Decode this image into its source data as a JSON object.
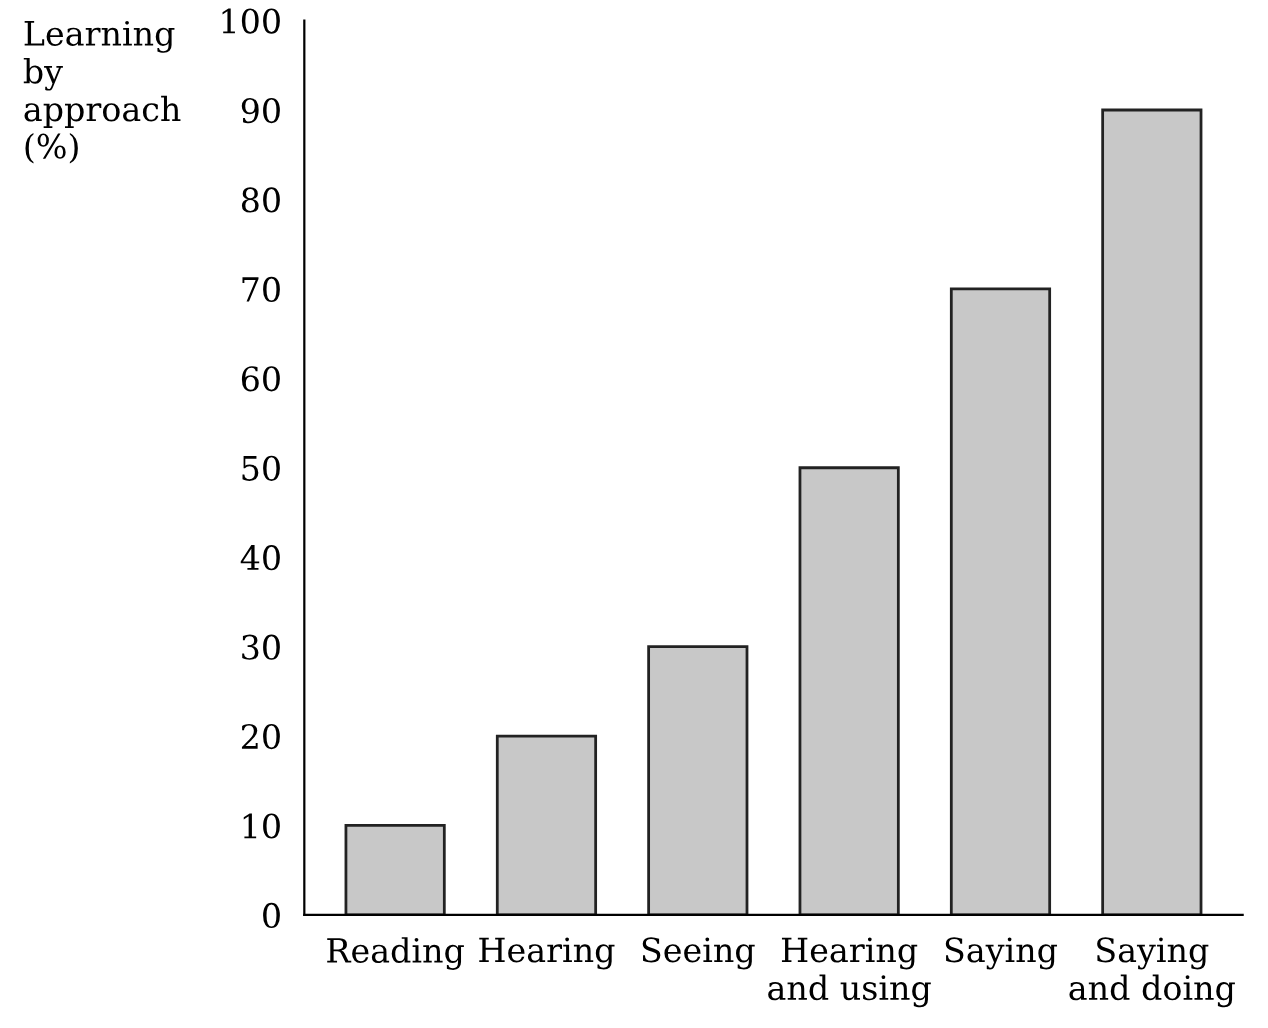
{
  "chart_data": {
    "type": "bar",
    "ylabel": "Learning\nby\napproach\n(%)",
    "categories": [
      "Reading",
      "Hearing",
      "Seeing",
      "Hearing\nand using",
      "Saying",
      "Saying\nand doing"
    ],
    "values": [
      10,
      20,
      30,
      50,
      70,
      90
    ],
    "color": "#c8c8c8",
    "ylim": [
      0,
      100
    ],
    "yticks": [
      0,
      10,
      20,
      30,
      40,
      50,
      60,
      70,
      80,
      90,
      100
    ],
    "grid": false,
    "legend": false
  }
}
